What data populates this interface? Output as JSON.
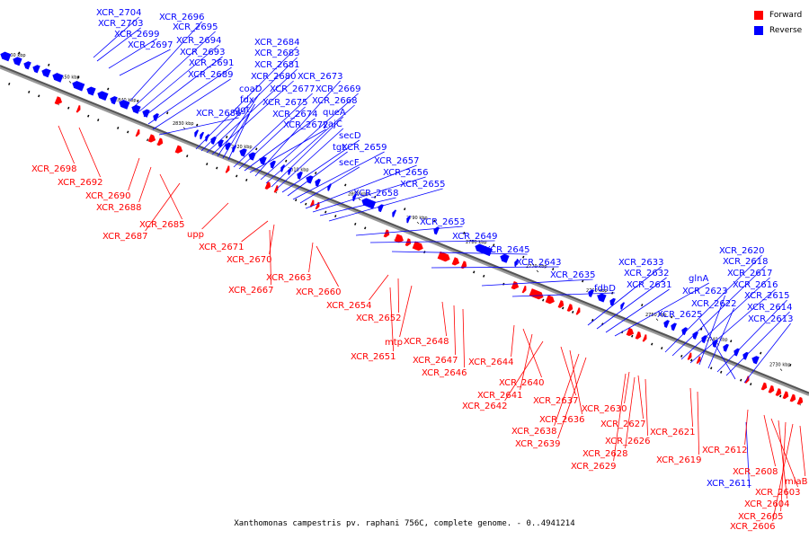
{
  "legend": {
    "forward": {
      "label": "Forward",
      "color": "#ff0000"
    },
    "reverse": {
      "label": "Reverse",
      "color": "#0000ff"
    }
  },
  "caption": "Xanthomonas campestris pv. raphani 756C, complete genome. - 0..4941214",
  "ticks": [
    "2860 kbp",
    "2850 kbp",
    "2840 kbp",
    "2830 kbp",
    "2820 kbp",
    "2810 kbp",
    "2800 kbp",
    "2790 kbp",
    "2780 kbp",
    "2770 kbp",
    "2760 kbp",
    "2750 kbp",
    "2740 kbp",
    "2730 kbp"
  ],
  "reverse_labels": [
    "XCR_2704",
    "XCR_2703",
    "XCR_2699",
    "XCR_2697",
    "XCR_2696",
    "XCR_2695",
    "XCR_2694",
    "XCR_2693",
    "XCR_2691",
    "XCR_2689",
    "XCR_2686",
    "XCR_2684",
    "XCR_2683",
    "XCR_2681",
    "XCR_2680",
    "coaD",
    "fdx",
    "ggt",
    "XCR_2677",
    "XCR_2675",
    "XCR_2674",
    "XCR_2672",
    "XCR_2673",
    "XCR_2669",
    "XCR_2668",
    "queA",
    "yajC",
    "secD",
    "tgt",
    "XCR_2659",
    "secF",
    "XCR_2657",
    "XCR_2656",
    "XCR_2658",
    "XCR_2655",
    "XCR_2653",
    "XCR_2649",
    "XCR_2645",
    "XCR_2643",
    "XCR_2635",
    "fdhD",
    "XCR_2633",
    "XCR_2632",
    "XCR_2631",
    "glnA",
    "XCR_2620",
    "XCR_2618",
    "XCR_2617",
    "XCR_2616",
    "XCR_2623",
    "XCR_2622",
    "XCR_2615",
    "XCR_2614",
    "XCR_2625",
    "XCR_2613",
    "XCR_2611"
  ],
  "forward_labels": [
    "XCR_2698",
    "XCR_2692",
    "XCR_2690",
    "XCR_2688",
    "XCR_2685",
    "XCR_2687",
    "upp",
    "XCR_2671",
    "XCR_2670",
    "XCR_2667",
    "XCR_2663",
    "XCR_2660",
    "XCR_2654",
    "XCR_2652",
    "mtp",
    "XCR_2651",
    "XCR_2648",
    "XCR_2647",
    "XCR_2646",
    "XCR_2644",
    "XCR_2640",
    "XCR_2641",
    "XCR_2642",
    "XCR_2637",
    "XCR_2636",
    "XCR_2638",
    "XCR_2639",
    "XCR_2630",
    "XCR_2627",
    "XCR_2626",
    "XCR_2628",
    "XCR_2629",
    "XCR_2621",
    "XCR_2619",
    "XCR_2612",
    "XCR_2608",
    "miaB",
    "XCR_2603",
    "XCR_2604",
    "XCR_2605",
    "XCR_2606"
  ]
}
